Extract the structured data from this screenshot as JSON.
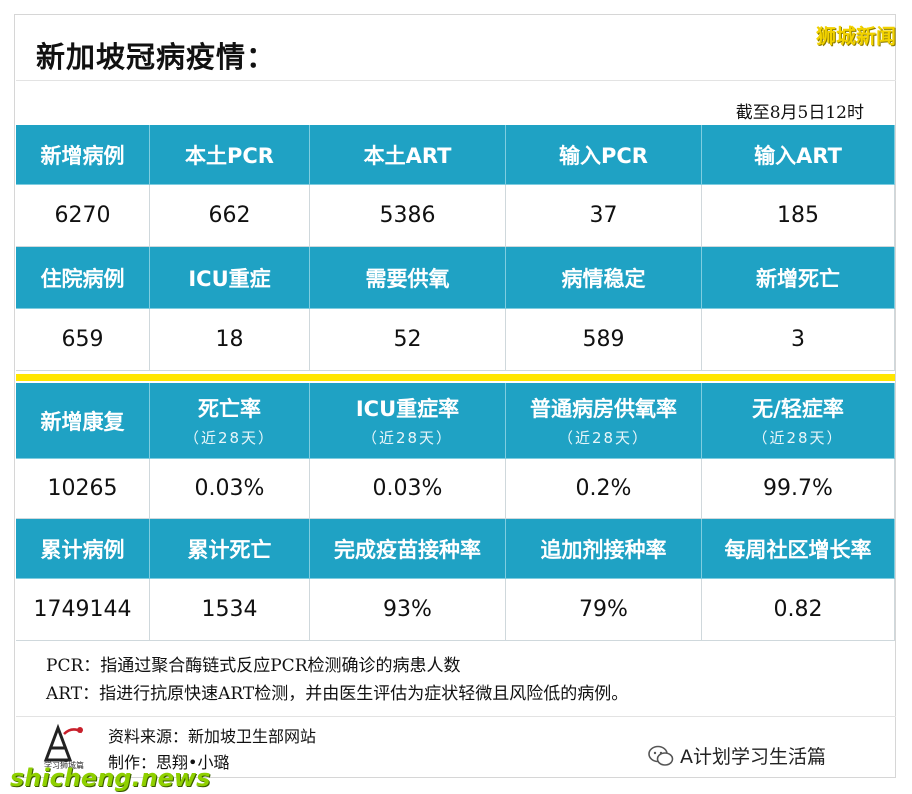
{
  "title": "新加坡冠病疫情：",
  "watermark_top": "狮城新闻",
  "watermark_bottom": "shicheng.news",
  "date": "截至8月5日12时",
  "rows": [
    {
      "headers": [
        {
          "label": "新增病例",
          "sub": ""
        },
        {
          "label": "本土PCR",
          "sub": ""
        },
        {
          "label": "本土ART",
          "sub": ""
        },
        {
          "label": "输入PCR",
          "sub": ""
        },
        {
          "label": "输入ART",
          "sub": ""
        }
      ],
      "values": [
        "6270",
        "662",
        "5386",
        "37",
        "185"
      ]
    },
    {
      "headers": [
        {
          "label": "住院病例",
          "sub": ""
        },
        {
          "label": "ICU重症",
          "sub": ""
        },
        {
          "label": "需要供氧",
          "sub": ""
        },
        {
          "label": "病情稳定",
          "sub": ""
        },
        {
          "label": "新增死亡",
          "sub": ""
        }
      ],
      "values": [
        "659",
        "18",
        "52",
        "589",
        "3"
      ]
    },
    {
      "headers": [
        {
          "label": "新增康复",
          "sub": ""
        },
        {
          "label": "死亡率",
          "sub": "（近28天）"
        },
        {
          "label": "ICU重症率",
          "sub": "（近28天）"
        },
        {
          "label": "普通病房供氧率",
          "sub": "（近28天）"
        },
        {
          "label": "无/轻症率",
          "sub": "（近28天）"
        }
      ],
      "values": [
        "10265",
        "0.03%",
        "0.03%",
        "0.2%",
        "99.7%"
      ]
    },
    {
      "headers": [
        {
          "label": "累计病例",
          "sub": ""
        },
        {
          "label": "累计死亡",
          "sub": ""
        },
        {
          "label": "完成疫苗接种率",
          "sub": ""
        },
        {
          "label": "追加剂接种率",
          "sub": ""
        },
        {
          "label": "每周社区增长率",
          "sub": ""
        }
      ],
      "values": [
        "1749144",
        "1534",
        "93%",
        "79%",
        "0.82"
      ]
    }
  ],
  "highlight_color": "#d0131f",
  "header_color": "#1fa2c4",
  "notes": [
    "PCR：指通过聚合酶链式反应PCR检测确诊的病患人数",
    "ART：指进行抗原快速ART检测，并由医生评估为症状轻微且风险低的病例。"
  ],
  "source": "资料来源：新加坡卫生部网站",
  "credit": "制作：思翔•小璐",
  "logo_text": "学习狮城篇",
  "wechat_account": "A计划学习生活篇"
}
